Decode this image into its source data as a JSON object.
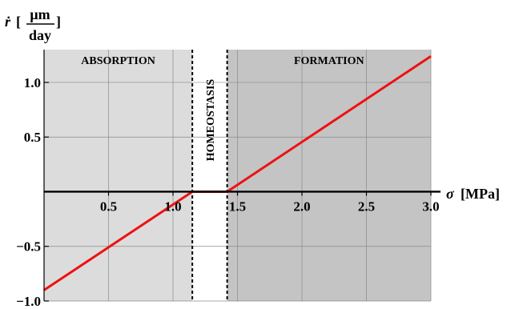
{
  "chart_data": {
    "type": "line",
    "xlabel_symbol": "σ",
    "xlabel_unit": "[MPa]",
    "ylabel_symbol": "ṙ",
    "ylabel_unit_num": "μm",
    "ylabel_unit_den": "day",
    "xlim": [
      0,
      3.0
    ],
    "ylim": [
      -1.0,
      1.3
    ],
    "x_ticks": [
      "0.5",
      "1.0",
      "1.5",
      "2.0",
      "2.5",
      "3.0"
    ],
    "x_tick_values": [
      0.5,
      1.0,
      1.5,
      2.0,
      2.5,
      3.0
    ],
    "y_ticks": [
      "1.0",
      "0.5",
      "−0.5",
      "−1.0"
    ],
    "y_tick_values": [
      1.0,
      0.5,
      -0.5,
      -1.0
    ],
    "regions": [
      {
        "label": "ABSORPTION",
        "from": 0,
        "to": 1.15,
        "color": "#dcdcdc",
        "orientation": "horizontal"
      },
      {
        "label": "HOMEOSTASIS",
        "from": 1.15,
        "to": 1.42,
        "color": "#ffffff",
        "orientation": "vertical"
      },
      {
        "label": "FORMATION",
        "from": 1.42,
        "to": 3.0,
        "color": "#c4c4c4",
        "orientation": "horizontal"
      }
    ],
    "thresholds": [
      1.15,
      1.42
    ],
    "grid": true,
    "series": [
      {
        "color": "#ee1111",
        "x": [
          0.0,
          1.15,
          1.42,
          3.0
        ],
        "y": [
          -0.9,
          0.0,
          0.0,
          1.24
        ]
      }
    ]
  }
}
